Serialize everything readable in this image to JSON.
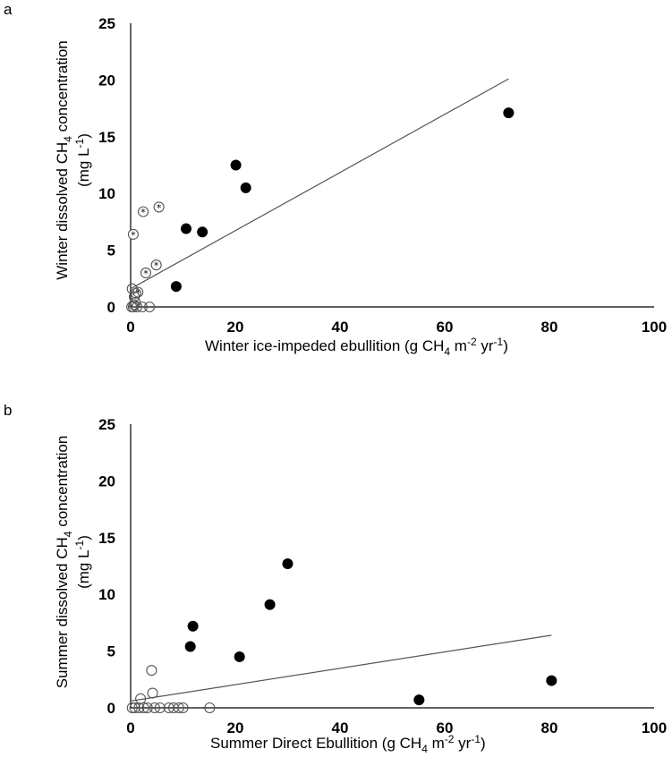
{
  "chart_data": [
    {
      "type": "scatter",
      "panel_label": "a",
      "xlabel": {
        "pre": "Winter ice-impeded  ebullition  (g CH",
        "sub": "4",
        "mid1": " m",
        "sup1": "-2",
        "mid2": " yr",
        "sup2": "-1",
        "post": ")"
      },
      "ylabel": {
        "line1_pre": "Winter dissolved CH",
        "line1_sub": "4",
        "line1_post": " concentration",
        "line2_pre": "(mg L",
        "line2_sup": "-1",
        "line2_post": ")"
      },
      "xlim": [
        0,
        100
      ],
      "ylim": [
        0,
        25
      ],
      "xticks": [
        0,
        20,
        40,
        60,
        80,
        100
      ],
      "yticks": [
        0,
        5,
        10,
        15,
        20,
        25
      ],
      "grid": false,
      "series": [
        {
          "marker": "filled-circle",
          "color": "#000000",
          "x": [
            72.2,
            20.1,
            22.0,
            10.6,
            13.7,
            8.7
          ],
          "y": [
            17.1,
            12.5,
            10.5,
            6.9,
            6.6,
            1.8
          ]
        },
        {
          "marker": "open-circle-asterisk",
          "color": "#555555",
          "x": [
            0.5,
            2.4,
            5.4,
            2.9,
            4.9,
            1.4
          ],
          "y": [
            6.4,
            8.4,
            8.8,
            3.0,
            3.7,
            1.3
          ]
        },
        {
          "marker": "open-circle",
          "color": "#555555",
          "x": [
            0.3,
            0.7,
            0.9,
            1.0,
            0.5,
            1.2,
            0.2,
            0.6,
            2.2,
            3.6
          ],
          "y": [
            1.6,
            0.9,
            0.4,
            1.2,
            0.0,
            0.0,
            0.0,
            0.2,
            0.0,
            0.0
          ]
        }
      ],
      "trendline": {
        "x": [
          0,
          72.2
        ],
        "y": [
          1.6,
          20.1
        ],
        "color": "#555555"
      }
    },
    {
      "type": "scatter",
      "panel_label": "b",
      "xlabel": {
        "pre": "Summer Direct Ebullition  (g CH",
        "sub": "4",
        "mid1": " m",
        "sup1": "-2",
        "mid2": " yr",
        "sup2": "-1",
        "post": ")"
      },
      "ylabel": {
        "line1_pre": "Summer dissolved CH",
        "line1_sub": "4",
        "line1_post": " concentration",
        "line2_pre": "(mg L",
        "line2_sup": "-1",
        "line2_post": ")"
      },
      "xlim": [
        0,
        100
      ],
      "ylim": [
        0,
        25
      ],
      "xticks": [
        0,
        20,
        40,
        60,
        80,
        100
      ],
      "yticks": [
        0,
        5,
        10,
        15,
        20,
        25
      ],
      "grid": false,
      "series": [
        {
          "marker": "filled-circle",
          "color": "#000000",
          "x": [
            30.0,
            26.6,
            11.9,
            11.4,
            20.8,
            55.1,
            80.4
          ],
          "y": [
            12.7,
            9.1,
            7.2,
            5.4,
            4.5,
            0.7,
            2.4
          ]
        },
        {
          "marker": "open-circle",
          "color": "#555555",
          "x": [
            4.0,
            4.2,
            1.9,
            0.3,
            0.8,
            1.6,
            2.5,
            3.2,
            4.6,
            5.6,
            7.3,
            8.2,
            9.2,
            10.0,
            15.1
          ],
          "y": [
            3.3,
            1.3,
            0.8,
            0.0,
            0.0,
            0.0,
            0.0,
            0.0,
            0.0,
            0.0,
            0.0,
            0.0,
            0.0,
            0.0,
            0.0
          ]
        }
      ],
      "trendline": {
        "x": [
          0,
          80.4
        ],
        "y": [
          0.6,
          6.4
        ],
        "color": "#555555"
      }
    }
  ]
}
